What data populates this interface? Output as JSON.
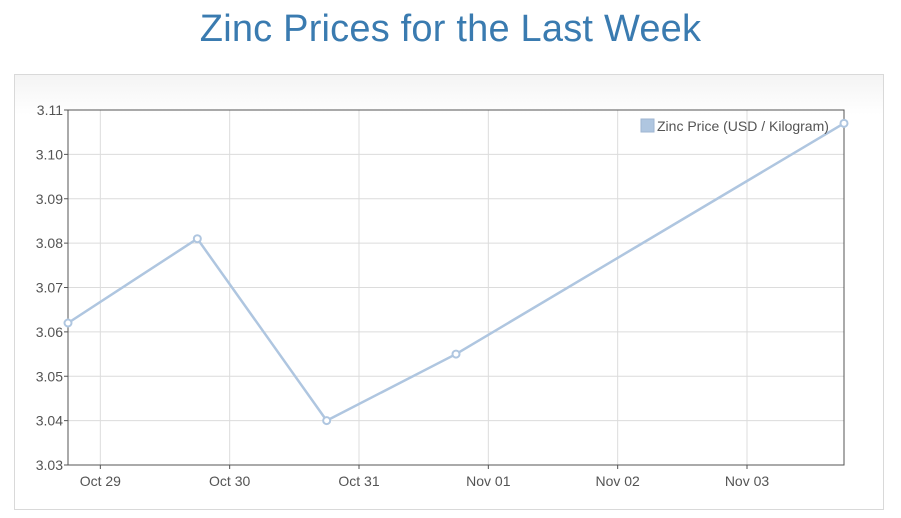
{
  "page": {
    "title": "Zinc Prices for the Last Week"
  },
  "colors": {
    "series": "#afc6e0",
    "title": "#3a7bb0",
    "grid": "#dcdcdc",
    "axis": "#545454"
  },
  "chart_data": {
    "type": "line",
    "title": "Zinc Prices for the Last Week",
    "xlabel": "",
    "ylabel": "",
    "x_ticks": [
      "Oct 29",
      "Oct 30",
      "Oct 31",
      "Nov 01",
      "Nov 02",
      "Nov 03"
    ],
    "xlim": [
      "2023-10-28 18:00",
      "2023-11-03 18:00"
    ],
    "ylim": [
      3.03,
      3.11
    ],
    "y_ticks": [
      3.03,
      3.04,
      3.05,
      3.06,
      3.07,
      3.08,
      3.09,
      3.1,
      3.11
    ],
    "grid": true,
    "legend_position": "top-right",
    "series": [
      {
        "name": "Zinc Price (USD / Kilogram)",
        "points": [
          {
            "x": "2023-10-28 18:00",
            "y": 3.062
          },
          {
            "x": "2023-10-29 18:00",
            "y": 3.081
          },
          {
            "x": "2023-10-30 18:00",
            "y": 3.04
          },
          {
            "x": "2023-10-31 18:00",
            "y": 3.055
          },
          {
            "x": "2023-11-03 18:00",
            "y": 3.107
          }
        ]
      }
    ]
  }
}
